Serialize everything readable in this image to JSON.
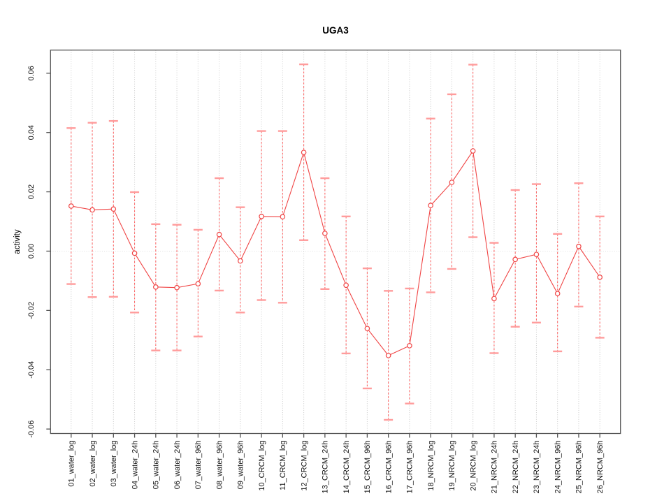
{
  "chart": {
    "title": "UGA3",
    "ylabel": "activity"
  },
  "chart_data": {
    "type": "line",
    "title": "UGA3",
    "xlabel": "",
    "ylabel": "activity",
    "legend": "none",
    "grid": "vertical dotted gridline per category; dotted horizontal line at y=0",
    "ylim": [
      -0.0615,
      0.0678
    ],
    "yticks": {
      "values": [
        0.06,
        0.04,
        0.02,
        0.0,
        -0.02,
        -0.04,
        -0.06
      ],
      "labels": [
        "0.06",
        "0.04",
        "0.02",
        "0.00",
        "-0.02",
        "-0.04",
        "-0.06"
      ]
    },
    "categories": [
      "01_water_log",
      "02_water_log",
      "03_water_log",
      "04_water_24h",
      "05_water_24h",
      "06_water_24h",
      "07_water_96h",
      "08_water_96h",
      "09_water_96h",
      "10_CRCM_log",
      "11_CRCM_log",
      "12_CRCM_log",
      "13_CRCM_24h",
      "14_CRCM_24h",
      "15_CRCM_96h",
      "16_CRCM_96h",
      "17_CRCM_96h",
      "18_NRCM_log",
      "19_NRCM_log",
      "20_NRCM_log",
      "21_NRCM_24h",
      "22_NRCM_24h",
      "23_NRCM_24h",
      "24_NRCM_96h",
      "25_NRCM_96h",
      "26_NRCM_96h"
    ],
    "series": [
      {
        "name": "activity",
        "values": [
          0.0152,
          0.0139,
          0.0142,
          -0.0007,
          -0.0121,
          -0.0123,
          -0.011,
          0.0056,
          -0.0033,
          0.0117,
          0.0116,
          0.0333,
          0.006,
          -0.0115,
          -0.0261,
          -0.0352,
          -0.0319,
          0.0154,
          0.0232,
          0.0338,
          -0.016,
          -0.0028,
          -0.0011,
          -0.0143,
          0.0016,
          -0.0088
        ]
      }
    ],
    "error_upper": [
      0.0415,
      0.0433,
      0.0439,
      0.0199,
      0.0091,
      0.0089,
      0.0072,
      0.0246,
      0.0148,
      0.0405,
      0.0405,
      0.063,
      0.0246,
      0.0117,
      -0.0058,
      -0.0134,
      -0.0126,
      0.0447,
      0.0529,
      0.0629,
      0.0028,
      0.0206,
      0.0226,
      0.0058,
      0.0229,
      0.0117
    ],
    "error_lower": [
      -0.0111,
      -0.0155,
      -0.0154,
      -0.0207,
      -0.0335,
      -0.0335,
      -0.0288,
      -0.0133,
      -0.0207,
      -0.0165,
      -0.0174,
      0.0037,
      -0.0128,
      -0.0345,
      -0.0463,
      -0.0569,
      -0.0514,
      -0.0139,
      -0.006,
      0.0047,
      -0.0344,
      -0.0255,
      -0.0241,
      -0.0338,
      -0.0187,
      -0.0292
    ],
    "colors": {
      "series": "#f04545",
      "error_bar": "#ff5c5c",
      "error_cap": "#ff9c9c",
      "grid": "#c9c9c9",
      "zero_line": "#dedede",
      "box": "#545454",
      "text": "#111111"
    }
  }
}
